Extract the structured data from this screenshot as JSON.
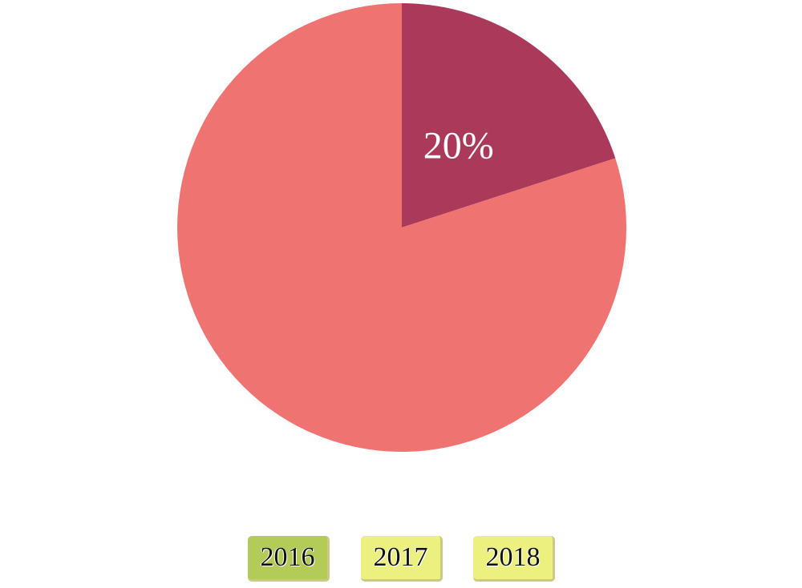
{
  "chart_data": {
    "type": "pie",
    "slices": [
      {
        "value": 20,
        "label": "20%",
        "color": "#ab3a5a"
      },
      {
        "value": 80,
        "label": "",
        "color": "#ef7370"
      }
    ],
    "title": ""
  },
  "year_selector": {
    "active": "2016",
    "active_color": "#b3cb57",
    "inactive_color": "#ebf07e",
    "buttons": [
      {
        "label": "2016"
      },
      {
        "label": "2017"
      },
      {
        "label": "2018"
      }
    ]
  }
}
